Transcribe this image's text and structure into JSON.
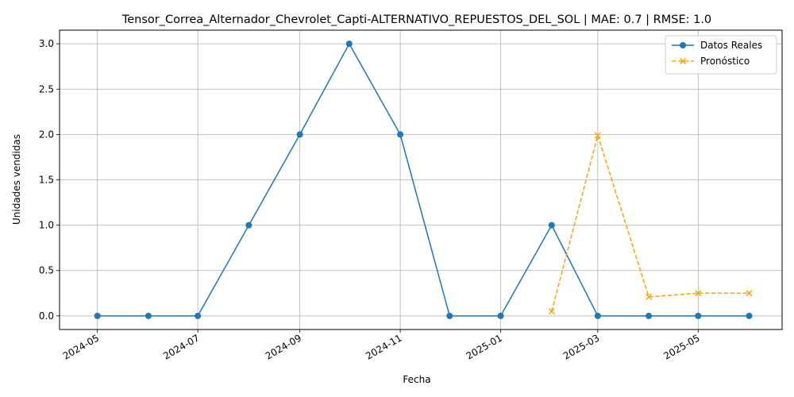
{
  "chart_data": {
    "type": "line",
    "title": "Tensor_Correa_Alternador_Chevrolet_Capti-ALTERNATIVO_REPUESTOS_DEL_SOL | MAE: 0.7 | RMSE: 1.0",
    "xlabel": "Fecha",
    "ylabel": "Unidades vendidas",
    "ylim": [
      -0.15,
      3.15
    ],
    "xlim": [
      "2024-04-08",
      "2025-06-21"
    ],
    "grid": true,
    "legend_position": "top-right",
    "x_ticks": [
      "2024-05",
      "2024-07",
      "2024-09",
      "2024-11",
      "2025-01",
      "2025-03",
      "2025-05"
    ],
    "y_ticks": [
      "0.0",
      "0.5",
      "1.0",
      "1.5",
      "2.0",
      "2.5",
      "3.0"
    ],
    "series": [
      {
        "name": "Datos Reales",
        "color": "#1f77b4",
        "style": "solid",
        "marker": "circle",
        "x": [
          "2024-05-01",
          "2024-06-01",
          "2024-07-01",
          "2024-08-01",
          "2024-09-01",
          "2024-10-01",
          "2024-11-01",
          "2024-12-01",
          "2025-01-01",
          "2025-02-01",
          "2025-03-01",
          "2025-04-01",
          "2025-05-01",
          "2025-06-01"
        ],
        "values": [
          0,
          0,
          0,
          1,
          2,
          3,
          2,
          0,
          0,
          1,
          0,
          0,
          0,
          0
        ]
      },
      {
        "name": "Pronóstico",
        "color": "#ffa500",
        "style": "dashed",
        "marker": "x",
        "x": [
          "2025-02-01",
          "2025-03-01",
          "2025-04-01",
          "2025-05-01",
          "2025-06-01"
        ],
        "values": [
          0.05,
          1.99,
          0.21,
          0.25,
          0.25
        ]
      }
    ]
  }
}
